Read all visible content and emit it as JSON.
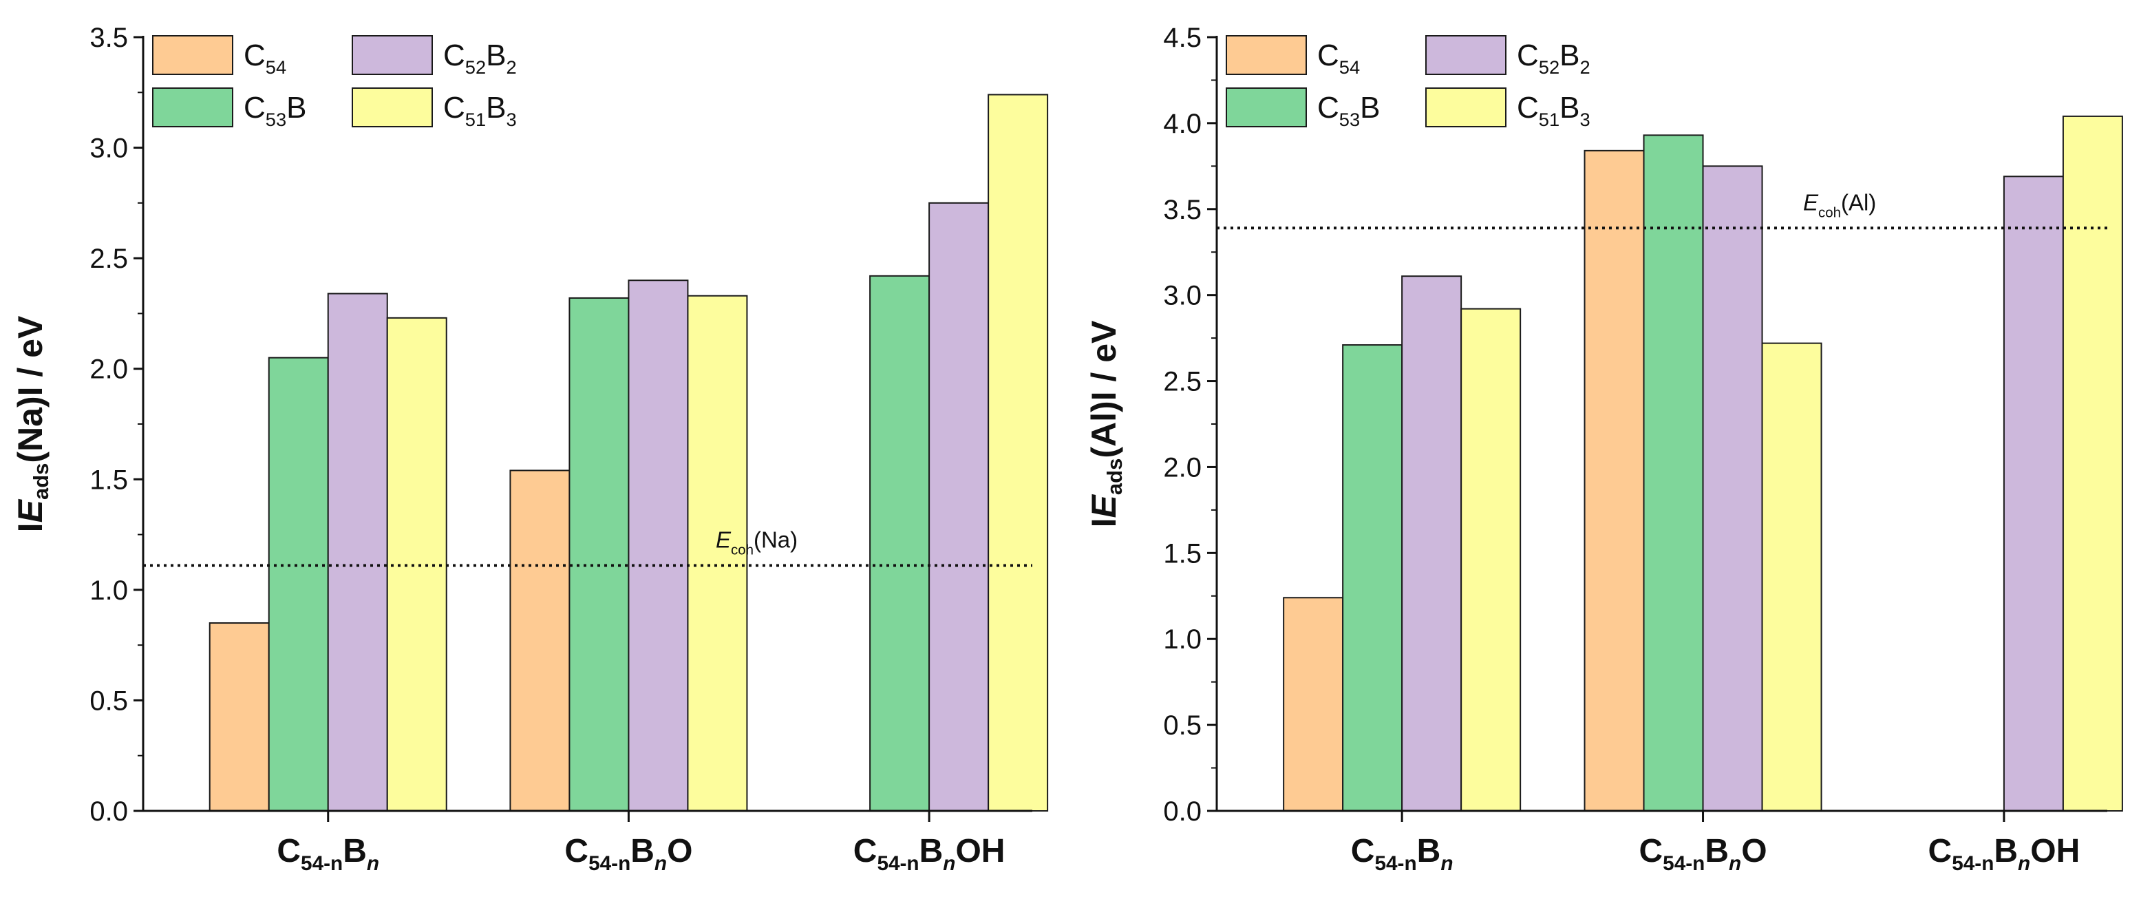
{
  "chart_data": [
    {
      "type": "bar",
      "ylabel": {
        "prefix": "I",
        "main": "E",
        "sub": "ads",
        "suffix": "(Na)I / eV"
      },
      "ylim": [
        0,
        3.5
      ],
      "yticks": [
        "0.0",
        "0.5",
        "1.0",
        "1.5",
        "2.0",
        "2.5",
        "3.0",
        "3.5"
      ],
      "categories": [
        {
          "id": "C54-nBn",
          "base": "C",
          "sub": "54-n",
          "b": "B",
          "bsub": "n",
          "tail": ""
        },
        {
          "id": "C54-nBnO",
          "base": "C",
          "sub": "54-n",
          "b": "B",
          "bsub": "n",
          "tail": "O"
        },
        {
          "id": "C54-nBnOH",
          "base": "C",
          "sub": "54-n",
          "b": "B",
          "bsub": "n",
          "tail": "OH"
        }
      ],
      "series": [
        {
          "name": "C54",
          "values": [
            0.85,
            1.54,
            null
          ]
        },
        {
          "name": "C53B",
          "values": [
            2.05,
            2.32,
            2.42
          ]
        },
        {
          "name": "C52B2",
          "values": [
            2.34,
            2.4,
            2.75
          ]
        },
        {
          "name": "C51B3",
          "values": [
            2.23,
            2.33,
            3.24
          ]
        }
      ],
      "reference_line": {
        "value": 1.11,
        "style": "dotted",
        "label": {
          "main": "E",
          "sub": "coh",
          "suffix": "(Na)"
        }
      }
    },
    {
      "type": "bar",
      "ylabel": {
        "prefix": "I",
        "main": "E",
        "sub": "ads",
        "suffix": "(Al)I / eV"
      },
      "ylim": [
        0,
        4.5
      ],
      "yticks": [
        "0.0",
        "0.5",
        "1.0",
        "1.5",
        "2.0",
        "2.5",
        "3.0",
        "3.5",
        "4.0",
        "4.5"
      ],
      "categories": [
        {
          "id": "C54-nBn",
          "base": "C",
          "sub": "54-n",
          "b": "B",
          "bsub": "n",
          "tail": ""
        },
        {
          "id": "C54-nBnO",
          "base": "C",
          "sub": "54-n",
          "b": "B",
          "bsub": "n",
          "tail": "O"
        },
        {
          "id": "C54-nBnOH",
          "base": "C",
          "sub": "54-n",
          "b": "B",
          "bsub": "n",
          "tail": "OH"
        }
      ],
      "series": [
        {
          "name": "C54",
          "values": [
            1.24,
            3.84,
            null
          ]
        },
        {
          "name": "C53B",
          "values": [
            2.71,
            3.93,
            null
          ]
        },
        {
          "name": "C52B2",
          "values": [
            3.11,
            3.75,
            3.69
          ]
        },
        {
          "name": "C51B3",
          "values": [
            2.92,
            2.72,
            4.04
          ]
        }
      ],
      "reference_line": {
        "value": 3.39,
        "style": "dotted",
        "label": {
          "main": "E",
          "sub": "coh",
          "suffix": "(Al)"
        }
      }
    }
  ],
  "legend": [
    {
      "key": "C54",
      "base": "C",
      "sub": "54",
      "rest": "",
      "restsub": ""
    },
    {
      "key": "C53B",
      "base": "C",
      "sub": "53",
      "rest": "B",
      "restsub": ""
    },
    {
      "key": "C52B2",
      "base": "C",
      "sub": "52",
      "rest": "B",
      "restsub": "2"
    },
    {
      "key": "C51B3",
      "base": "C",
      "sub": "51",
      "rest": "B",
      "restsub": "3"
    }
  ],
  "colors": {
    "C54": "#fecb93",
    "C53B": "#7fd69a",
    "C52B2": "#cdb8dc",
    "C51B3": "#fdfd9d",
    "outline": "#1a1a1a"
  }
}
